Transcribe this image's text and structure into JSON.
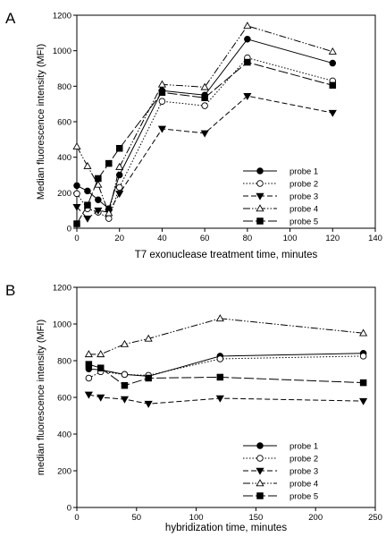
{
  "chart_data": [
    {
      "panel_label": "A",
      "type": "line",
      "xlabel": "T7 exonuclease treatment time, minutes",
      "ylabel": "Median fluorescence intensity (MFI)",
      "xlim": [
        0,
        140
      ],
      "ylim": [
        0,
        1200
      ],
      "xticks": [
        0,
        20,
        40,
        60,
        80,
        100,
        120,
        140
      ],
      "yticks": [
        0,
        200,
        400,
        600,
        800,
        1000,
        1200
      ],
      "grid": false,
      "legend_position": "bottom-right",
      "series": [
        {
          "name": "probe 1",
          "marker": "circle-filled",
          "dash": "solid",
          "x": [
            0,
            5,
            10,
            15,
            20,
            40,
            60,
            80,
            120
          ],
          "y": [
            240,
            210,
            160,
            110,
            300,
            775,
            750,
            1065,
            930
          ]
        },
        {
          "name": "probe 2",
          "marker": "circle-open",
          "dash": "dot",
          "x": [
            0,
            5,
            10,
            15,
            20,
            40,
            60,
            80,
            120
          ],
          "y": [
            195,
            110,
            90,
            55,
            230,
            715,
            690,
            960,
            830
          ]
        },
        {
          "name": "probe 3",
          "marker": "triangle-down-filled",
          "dash": "dash",
          "x": [
            0,
            5,
            10,
            15,
            20,
            40,
            60,
            80,
            120
          ],
          "y": [
            120,
            55,
            100,
            90,
            195,
            560,
            535,
            745,
            650
          ]
        },
        {
          "name": "probe 4",
          "marker": "triangle-up-open",
          "dash": "dashdotdot",
          "x": [
            0,
            5,
            10,
            15,
            20,
            40,
            60,
            80,
            120
          ],
          "y": [
            460,
            350,
            245,
            85,
            345,
            810,
            795,
            1140,
            995
          ]
        },
        {
          "name": "probe 5",
          "marker": "square-filled",
          "dash": "longdash",
          "x": [
            0,
            5,
            10,
            15,
            20,
            40,
            60,
            80,
            120
          ],
          "y": [
            25,
            130,
            280,
            365,
            450,
            765,
            735,
            935,
            805
          ]
        }
      ]
    },
    {
      "panel_label": "B",
      "type": "line",
      "xlabel": "hybridization time, minutes",
      "ylabel": "median fluorescence intensity (MFI)",
      "xlim": [
        0,
        250
      ],
      "ylim": [
        0,
        1200
      ],
      "xticks": [
        0,
        50,
        100,
        150,
        200,
        250
      ],
      "yticks": [
        0,
        200,
        400,
        600,
        800,
        1000,
        1200
      ],
      "grid": false,
      "legend_position": "bottom-right",
      "series": [
        {
          "name": "probe 1",
          "marker": "circle-filled",
          "dash": "solid",
          "x": [
            10,
            20,
            40,
            60,
            120,
            240
          ],
          "y": [
            755,
            750,
            725,
            715,
            825,
            840
          ]
        },
        {
          "name": "probe 2",
          "marker": "circle-open",
          "dash": "dot",
          "x": [
            10,
            20,
            40,
            60,
            120,
            240
          ],
          "y": [
            705,
            740,
            725,
            720,
            810,
            825
          ]
        },
        {
          "name": "probe 3",
          "marker": "triangle-down-filled",
          "dash": "dash",
          "x": [
            10,
            20,
            40,
            60,
            120,
            240
          ],
          "y": [
            615,
            600,
            590,
            565,
            595,
            580
          ]
        },
        {
          "name": "probe 4",
          "marker": "triangle-up-open",
          "dash": "dashdotdot",
          "x": [
            10,
            20,
            40,
            60,
            120,
            240
          ],
          "y": [
            835,
            835,
            890,
            920,
            1030,
            950
          ]
        },
        {
          "name": "probe 5",
          "marker": "square-filled",
          "dash": "longdash",
          "x": [
            10,
            20,
            40,
            60,
            120,
            240
          ],
          "y": [
            780,
            760,
            665,
            705,
            710,
            680
          ]
        }
      ]
    }
  ]
}
